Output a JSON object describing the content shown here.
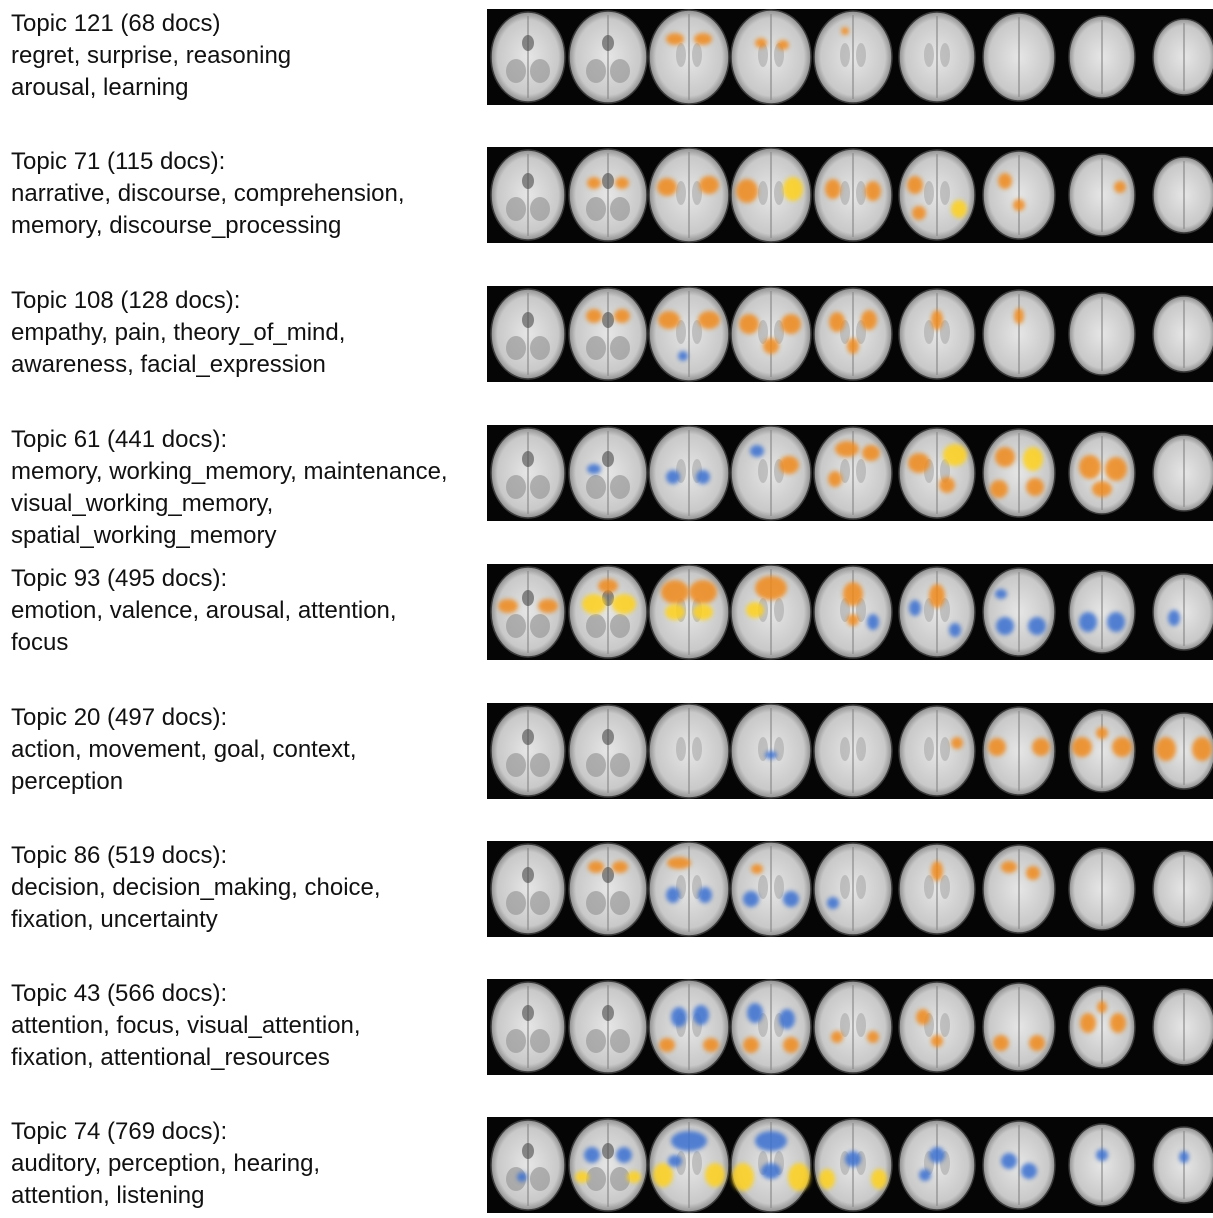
{
  "topics": [
    {
      "title": "Topic 121 (68 docs)",
      "terms": [
        "regret, surprise, reasoning",
        "arousal, learning"
      ]
    },
    {
      "title": "Topic 71 (115 docs):",
      "terms": [
        "narrative, discourse, comprehension,",
        "memory, discourse_processing"
      ]
    },
    {
      "title": "Topic 108 (128 docs):",
      "terms": [
        "empathy, pain, theory_of_mind,",
        "awareness, facial_expression"
      ]
    },
    {
      "title": "Topic 61 (441 docs):",
      "terms": [
        "memory, working_memory, maintenance,",
        "visual_working_memory,",
        "spatial_working_memory"
      ]
    },
    {
      "title": "Topic 93 (495 docs):",
      "terms": [
        "emotion, valence, arousal, attention,",
        "focus"
      ]
    },
    {
      "title": "Topic 20 (497 docs):",
      "terms": [
        "action, movement, goal, context,",
        "perception"
      ]
    },
    {
      "title": "Topic 86 (519 docs):",
      "terms": [
        "decision, decision_making, choice,",
        "fixation, uncertainty"
      ]
    },
    {
      "title": "Topic 43 (566 docs):",
      "terms": [
        "attention, focus, visual_attention,",
        "fixation, attentional_resources"
      ]
    },
    {
      "title": "Topic 74 (769 docs):",
      "terms": [
        "auditory, perception, hearing,",
        "attention, listening"
      ]
    }
  ],
  "colors": {
    "background": "#ffffff",
    "strip": "#050505",
    "brain": "#c9c9c9",
    "activation_positive": "#f08a1e",
    "activation_strong": "#ffd21a",
    "activation_negative": "#3a6fd0"
  }
}
